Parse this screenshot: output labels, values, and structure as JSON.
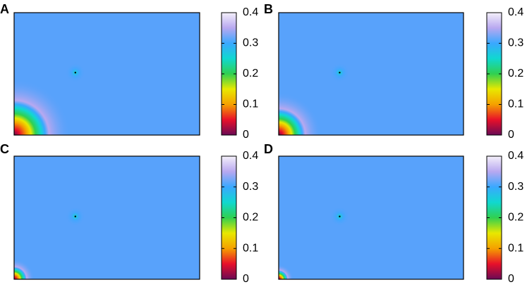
{
  "chart_data": [
    {
      "type": "heatmap",
      "title": "A",
      "clim": [
        0,
        0.4
      ],
      "cticks": [
        0,
        0.1,
        0.2,
        0.3,
        0.4
      ],
      "colormap": [
        "#6a0a55",
        "#e8102a",
        "#f5a000",
        "#e8e800",
        "#30d050",
        "#10d8d0",
        "#3aa8ff",
        "#b8a8f0",
        "#f4f0fa"
      ]
    },
    {
      "type": "heatmap",
      "title": "B",
      "clim": [
        0,
        0.4
      ],
      "cticks": [
        0,
        0.1,
        0.2,
        0.3,
        0.4
      ],
      "colormap": [
        "#6a0a55",
        "#e8102a",
        "#f5a000",
        "#e8e800",
        "#30d050",
        "#10d8d0",
        "#3aa8ff",
        "#b8a8f0",
        "#f4f0fa"
      ]
    },
    {
      "type": "heatmap",
      "title": "C",
      "clim": [
        0,
        0.4
      ],
      "cticks": [
        0,
        0.1,
        0.2,
        0.3,
        0.4
      ],
      "colormap": [
        "#6a0a55",
        "#e8102a",
        "#f5a000",
        "#e8e800",
        "#30d050",
        "#10d8d0",
        "#3aa8ff",
        "#b8a8f0",
        "#f4f0fa"
      ]
    },
    {
      "type": "heatmap",
      "title": "D",
      "clim": [
        0,
        0.4
      ],
      "cticks": [
        0,
        0.1,
        0.2,
        0.3,
        0.4
      ],
      "colormap": [
        "#6a0a55",
        "#e8102a",
        "#f5a000",
        "#e8e800",
        "#30d050",
        "#10d8d0",
        "#3aa8ff",
        "#b8a8f0",
        "#f4f0fa"
      ]
    }
  ]
}
